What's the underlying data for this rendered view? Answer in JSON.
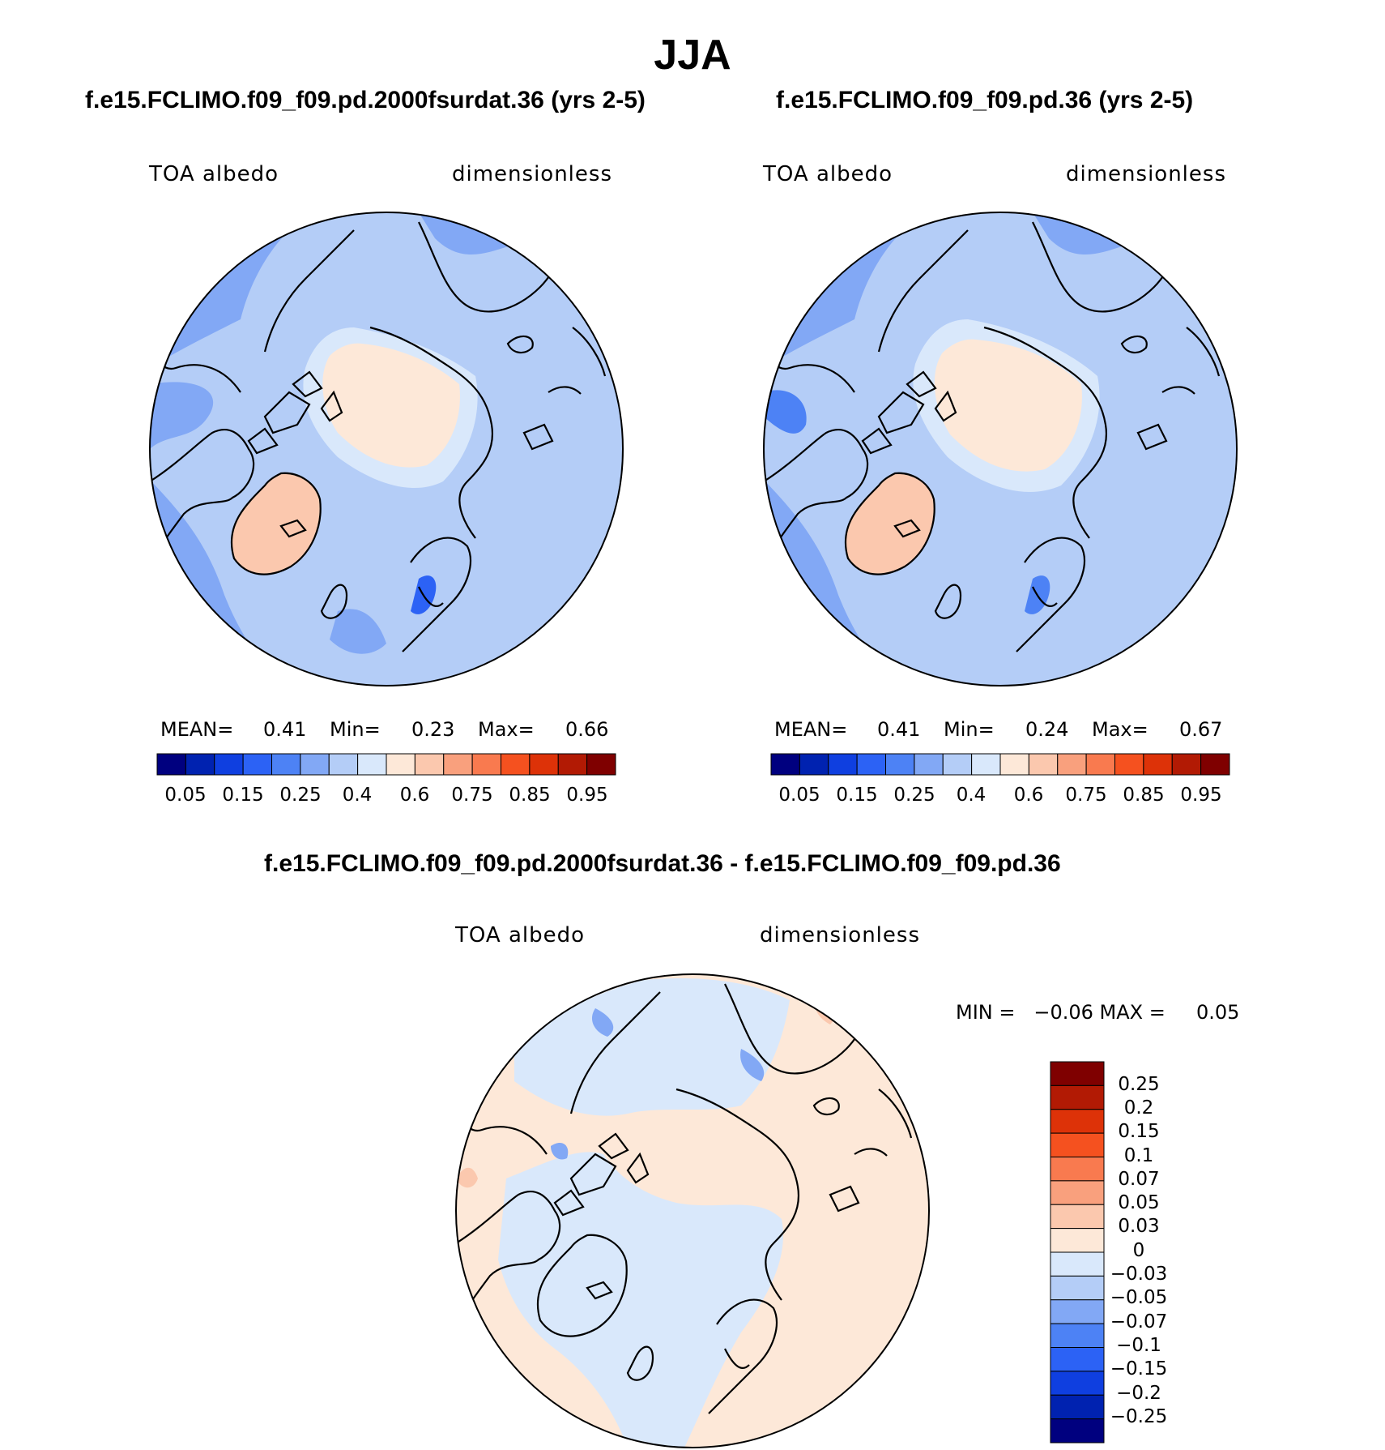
{
  "figure": {
    "title": "JJA"
  },
  "panels": [
    {
      "title": "f.e15.FCLIMO.f09_f09.pd.2000fsurdat.36 (yrs 2-5)",
      "left_label": "TOA albedo",
      "right_label": "dimensionless",
      "stats": {
        "mean_label": "MEAN=",
        "mean": "0.41",
        "min_label": "Min=",
        "min": "0.23",
        "max_label": "Max=",
        "max": "0.66"
      },
      "colorbar_ticks": [
        "0.05",
        "0.15",
        "0.25",
        "0.4",
        "0.6",
        "0.75",
        "0.85",
        "0.95"
      ]
    },
    {
      "title": "f.e15.FCLIMO.f09_f09.pd.36 (yrs 2-5)",
      "left_label": "TOA albedo",
      "right_label": "dimensionless",
      "stats": {
        "mean_label": "MEAN=",
        "mean": "0.41",
        "min_label": "Min=",
        "min": "0.24",
        "max_label": "Max=",
        "max": "0.67"
      },
      "colorbar_ticks": [
        "0.05",
        "0.15",
        "0.25",
        "0.4",
        "0.6",
        "0.75",
        "0.85",
        "0.95"
      ]
    }
  ],
  "diff_panel": {
    "title": "f.e15.FCLIMO.f09_f09.pd.2000fsurdat.36 - f.e15.FCLIMO.f09_f09.pd.36",
    "left_label": "TOA albedo",
    "right_label": "dimensionless",
    "minmax": "MIN =   −0.06 MAX =     0.05",
    "colorbar_ticks": [
      "0.25",
      "0.2",
      "0.15",
      "0.1",
      "0.07",
      "0.05",
      "0.03",
      "0",
      "−0.03",
      "−0.05",
      "−0.07",
      "−0.1",
      "−0.15",
      "−0.2",
      "−0.25"
    ]
  },
  "colors": {
    "palette": [
      "#00007f",
      "#0022b0",
      "#0f3fe0",
      "#2c62f5",
      "#4d82f5",
      "#82a8f5",
      "#b4cdf7",
      "#d9e8fb",
      "#fde8d8",
      "#fbc8ae",
      "#f9a07d",
      "#f97a4f",
      "#f5511f",
      "#dd3208",
      "#b21a04",
      "#7f0000"
    ],
    "ocean_abs": "#b4cdf7",
    "arctic_abs": "#fde8d8",
    "ocean_diff": "#fde8d8",
    "land_diff": "#d9e8fb",
    "coast": "#000000"
  }
}
